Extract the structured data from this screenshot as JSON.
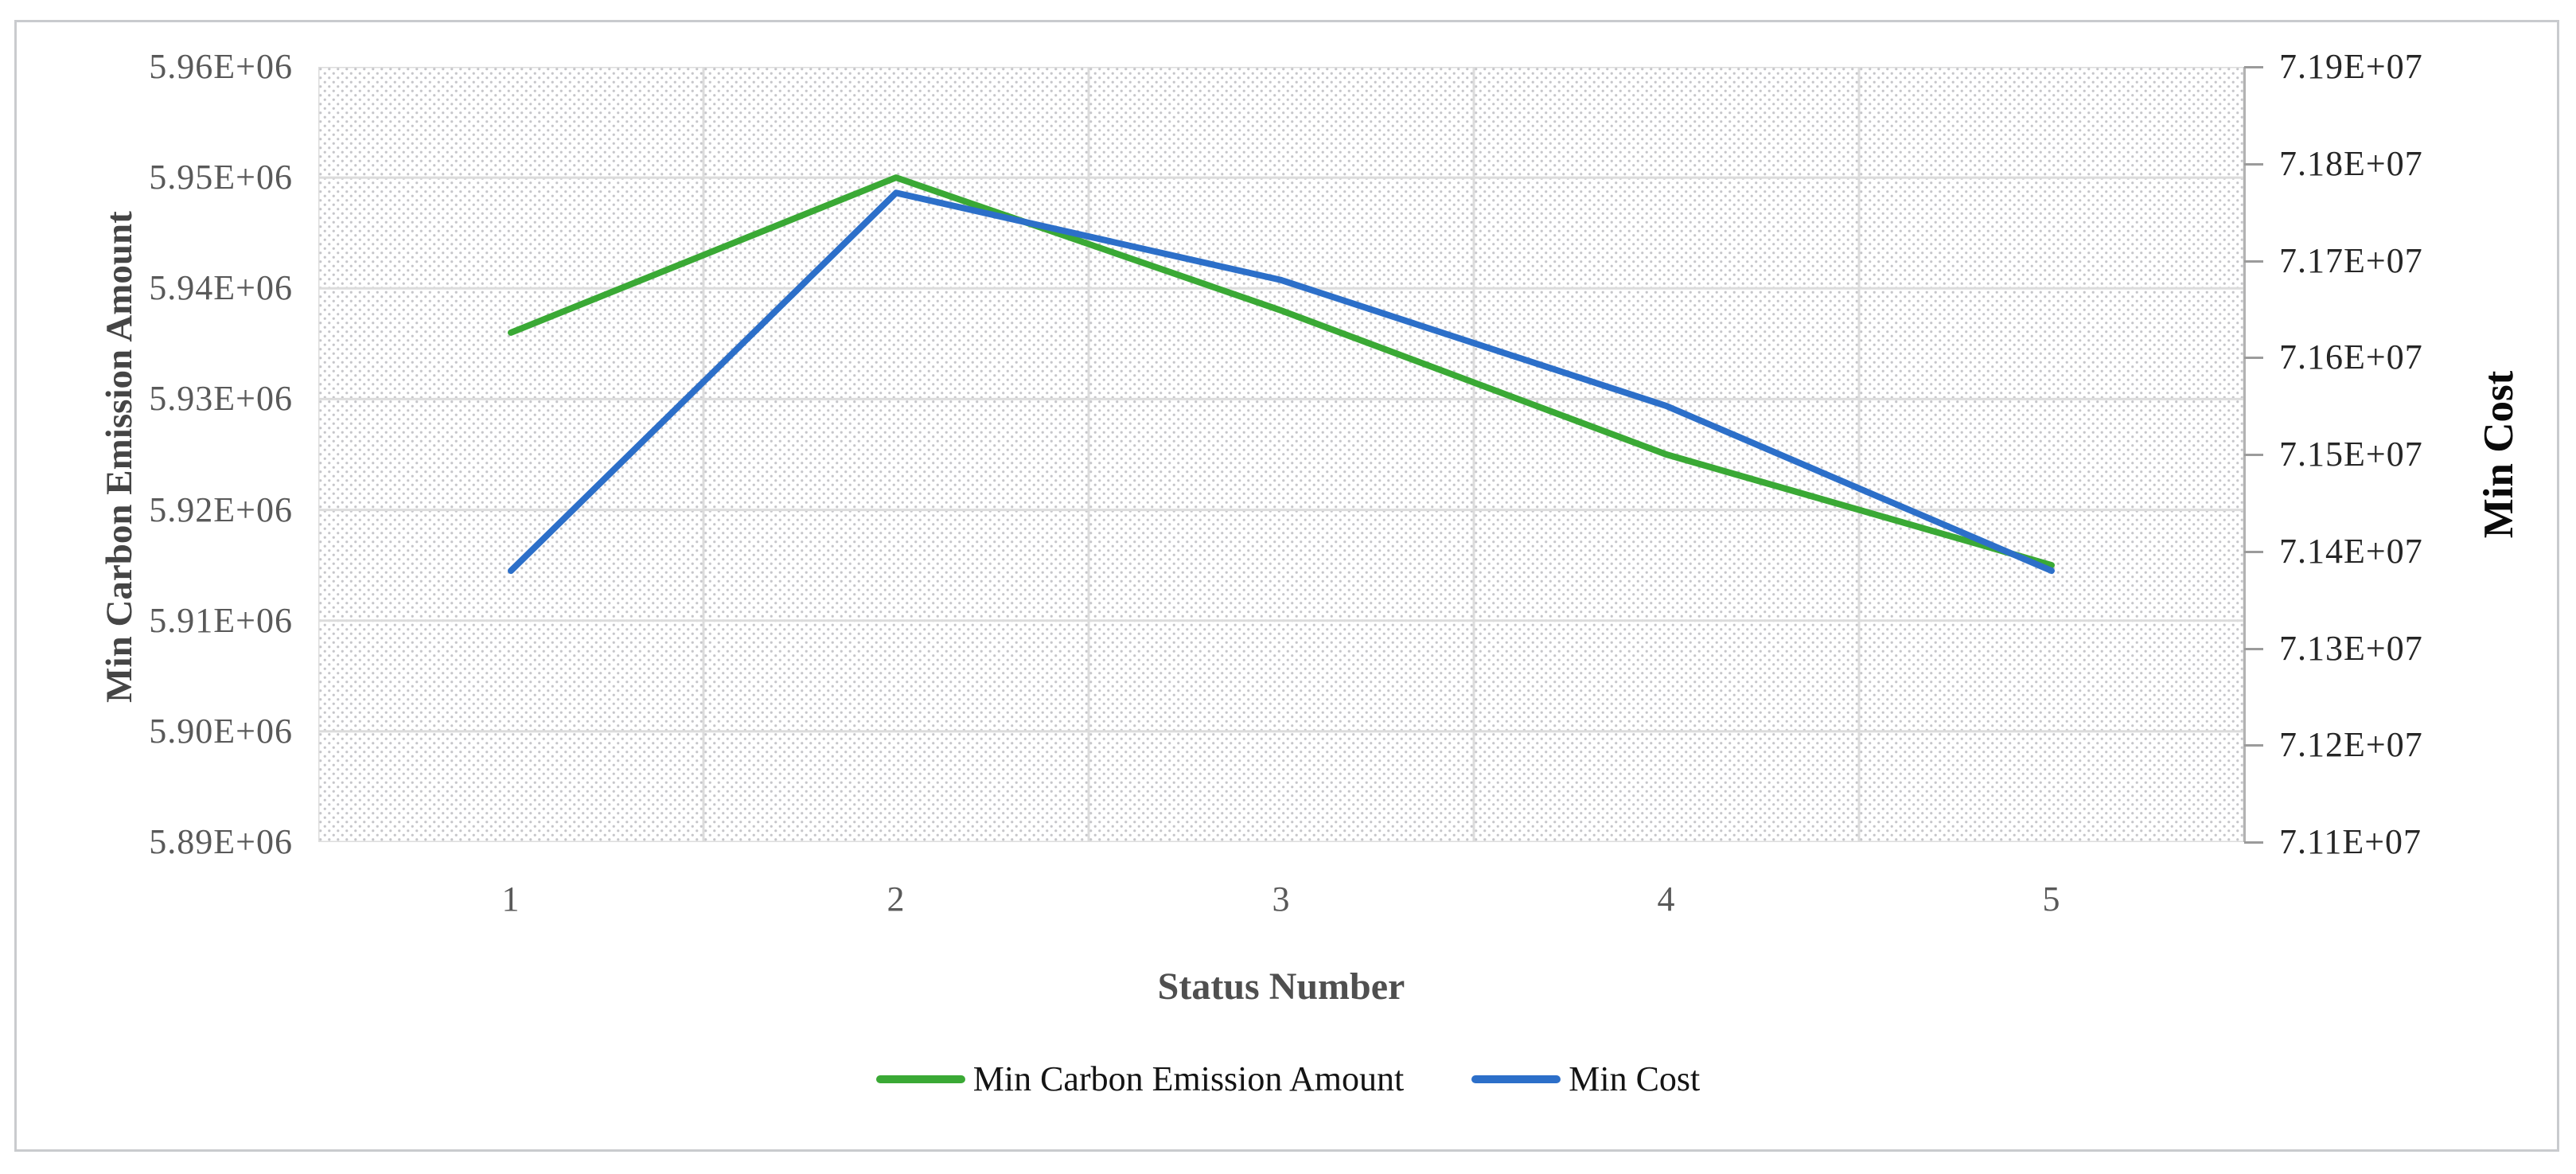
{
  "figure": {
    "background": "#ffffff",
    "border_color": "#c9cbce"
  },
  "chart_data": {
    "type": "line",
    "categories": [
      1,
      2,
      3,
      4,
      5
    ],
    "series": [
      {
        "name": "Min Carbon Emission Amount",
        "axis": "left",
        "color": "#3aa935",
        "values": [
          5936000,
          5950000,
          5938000,
          5925000,
          5915000
        ]
      },
      {
        "name": "Min Cost",
        "axis": "right",
        "color": "#2c6fc9",
        "values": [
          71380000,
          71770000,
          71680000,
          71550000,
          71380000
        ]
      }
    ],
    "left_axis": {
      "title": "Min Carbon Emission Amount",
      "min": 5890000,
      "max": 5960000,
      "step": 10000,
      "tick_labels": [
        "5.96E+06",
        "5.95E+06",
        "5.94E+06",
        "5.93E+06",
        "5.92E+06",
        "5.91E+06",
        "5.90E+06",
        "5.89E+06"
      ]
    },
    "right_axis": {
      "title": "Min Cost",
      "min": 71100000,
      "max": 71900000,
      "step": 100000,
      "tick_labels": [
        "7.19E+07",
        "7.18E+07",
        "7.17E+07",
        "7.16E+07",
        "7.15E+07",
        "7.14E+07",
        "7.13E+07",
        "7.12E+07",
        "7.11E+07"
      ]
    },
    "x_axis": {
      "title": "Status Number",
      "tick_labels": [
        "1",
        "2",
        "3",
        "4",
        "5"
      ]
    },
    "legend": [
      "Min Carbon Emission Amount",
      "Min Cost"
    ],
    "legend_position": "bottom",
    "grid": {
      "horizontal": true,
      "vertical": true
    },
    "plot_background": "light-diagonal-dotted-hatch",
    "colors": {
      "gridline": "#dcdcdc",
      "hatch_dot": "#c6c6ca",
      "right_axis_line": "#b2b2b2",
      "left_tick_text": "#595959",
      "right_tick_text": "#262626"
    }
  }
}
